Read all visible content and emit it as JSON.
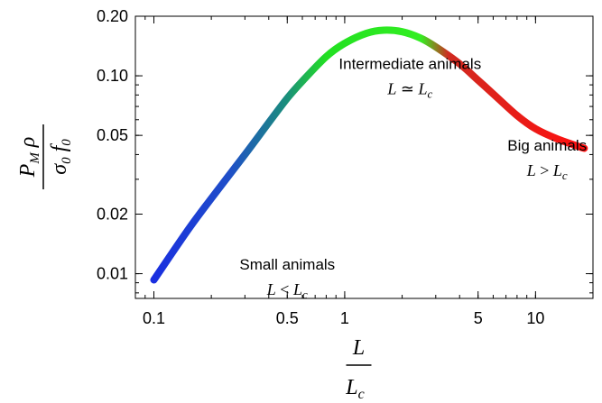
{
  "chart_data": {
    "type": "line",
    "x_scale": "log",
    "y_scale": "log",
    "xlim": [
      0.08,
      20
    ],
    "ylim": [
      0.0075,
      0.2
    ],
    "x_ticks": [
      {
        "value": 0.1,
        "label": "0.1"
      },
      {
        "value": 0.5,
        "label": "0.5"
      },
      {
        "value": 1,
        "label": "1"
      },
      {
        "value": 5,
        "label": "5"
      },
      {
        "value": 10,
        "label": "10"
      }
    ],
    "y_ticks": [
      {
        "value": 0.01,
        "label": "0.01"
      },
      {
        "value": 0.02,
        "label": "0.02"
      },
      {
        "value": 0.05,
        "label": "0.05"
      },
      {
        "value": 0.1,
        "label": "0.10"
      },
      {
        "value": 0.2,
        "label": "0.20"
      }
    ],
    "xlabel": {
      "num": "L",
      "den": "L",
      "den_sub": "c"
    },
    "ylabel": {
      "num": "P",
      "num_sub": "M",
      "num_rest": " ρ",
      "den": "σ",
      "den_sub": "0",
      "den_rest": " f",
      "den_rest_sub": "0"
    },
    "series": [
      {
        "x": [
          0.1,
          0.15,
          0.2,
          0.3,
          0.4,
          0.5,
          0.6,
          0.8,
          1.0,
          1.3,
          1.6,
          2.0,
          2.5,
          3.0,
          4.0,
          5.0,
          6.0,
          8.0,
          10.0,
          13.0,
          18.0
        ],
        "y": [
          0.0093,
          0.0165,
          0.024,
          0.04,
          0.058,
          0.077,
          0.094,
          0.125,
          0.146,
          0.164,
          0.17,
          0.167,
          0.155,
          0.14,
          0.115,
          0.095,
          0.081,
          0.063,
          0.054,
          0.048,
          0.043
        ],
        "color_stops": [
          {
            "x": 0.1,
            "color": "#1a2fe0"
          },
          {
            "x": 0.25,
            "color": "#1f4fc8"
          },
          {
            "x": 0.5,
            "color": "#1a8f7a"
          },
          {
            "x": 0.8,
            "color": "#22e022"
          },
          {
            "x": 2.5,
            "color": "#33ee22"
          },
          {
            "x": 3.5,
            "color": "#d02a20"
          },
          {
            "x": 18.0,
            "color": "#ff1010"
          }
        ]
      }
    ],
    "annotations": [
      {
        "x": 0.5,
        "y": 0.0105,
        "text": "Small animals",
        "math_left": "L",
        "math_op": " < ",
        "math_right": "L",
        "math_sub": "c"
      },
      {
        "x": 2.2,
        "y": 0.108,
        "text": "Intermediate animals",
        "math_left": "L",
        "math_op": " ≃ ",
        "math_right": "L",
        "math_sub": "c"
      },
      {
        "x": 11.5,
        "y": 0.042,
        "text": "Big animals",
        "math_left": "L",
        "math_op": " > ",
        "math_right": "L",
        "math_sub": "c"
      }
    ]
  }
}
